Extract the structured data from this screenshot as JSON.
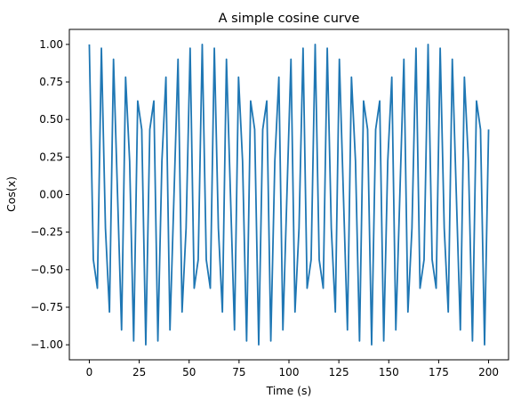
{
  "chart_data": {
    "type": "line",
    "title": "A simple cosine curve",
    "xlabel": "Time (s)",
    "ylabel": "Cos(x)",
    "xlim": [
      -10,
      210
    ],
    "ylim": [
      -1.1,
      1.1
    ],
    "xticks": [
      0,
      25,
      50,
      75,
      100,
      125,
      150,
      175,
      200
    ],
    "yticks": [
      1.0,
      0.75,
      0.5,
      0.25,
      0.0,
      -0.25,
      -0.5,
      -0.75,
      -1.0
    ],
    "ytick_labels": [
      "1.00",
      "0.75",
      "0.50",
      "0.25",
      "0.00",
      "−0.25",
      "−0.50",
      "−0.75",
      "−1.00"
    ],
    "grid": false,
    "series": [
      {
        "color": "#1f77b4",
        "x": [
          0,
          2.0202,
          4.0404,
          6.0606,
          8.0808,
          10.101,
          12.1212,
          14.1414,
          16.1616,
          18.1818,
          20.202,
          22.2222,
          24.2424,
          26.2626,
          28.2828,
          30.303,
          32.3232,
          34.3434,
          36.3636,
          38.3838,
          40.404,
          42.4242,
          44.4444,
          46.4646,
          48.4848,
          50.5051,
          52.5253,
          54.5455,
          56.5657,
          58.5859,
          60.6061,
          62.6263,
          64.6465,
          66.6667,
          68.6869,
          70.7071,
          72.7273,
          74.7475,
          76.7677,
          78.7879,
          80.8081,
          82.8283,
          84.8485,
          86.8687,
          88.8889,
          90.9091,
          92.9293,
          94.9495,
          96.9697,
          98.9899,
          101.0101,
          103.0303,
          105.0505,
          107.0707,
          109.0909,
          111.1111,
          113.1313,
          115.1515,
          117.1717,
          119.1919,
          121.2121,
          123.2323,
          125.2525,
          127.2727,
          129.2929,
          131.3131,
          133.3333,
          135.3535,
          137.3737,
          139.3939,
          141.4141,
          143.4343,
          145.4545,
          147.4747,
          149.4949,
          151.5152,
          153.5354,
          155.5556,
          157.5758,
          159.596,
          161.6162,
          163.6364,
          165.6566,
          167.6768,
          169.697,
          171.7172,
          173.7374,
          175.7576,
          177.7778,
          179.798,
          181.8182,
          183.8384,
          185.8586,
          187.8788,
          189.899,
          191.9192,
          193.9394,
          195.9596,
          197.9798,
          200
        ],
        "y": [
          1.0,
          -0.4339,
          -0.6234,
          0.9749,
          -0.2225,
          -0.7818,
          0.901,
          0.0,
          -0.901,
          0.7818,
          0.2225,
          -0.9749,
          0.6234,
          0.4339,
          -1.0,
          0.4339,
          0.6234,
          -0.9749,
          0.2225,
          0.7818,
          -0.901,
          0.0,
          0.901,
          -0.7818,
          -0.2225,
          0.9749,
          -0.6234,
          -0.4339,
          1.0,
          -0.4339,
          -0.6234,
          0.9749,
          -0.2225,
          -0.7818,
          0.901,
          0.0,
          -0.901,
          0.7818,
          0.2225,
          -0.9749,
          0.6234,
          0.4339,
          -1.0,
          0.4339,
          0.6234,
          -0.9749,
          0.2225,
          0.7818,
          -0.901,
          0.0,
          0.901,
          -0.7818,
          -0.2225,
          0.9749,
          -0.6234,
          -0.4339,
          1.0,
          -0.4339,
          -0.6234,
          0.9749,
          -0.2225,
          -0.7818,
          0.901,
          0.0,
          -0.901,
          0.7818,
          0.2225,
          -0.9749,
          0.6234,
          0.4339,
          -1.0,
          0.4339,
          0.6234,
          -0.9749,
          0.2225,
          0.7818,
          -0.901,
          0.0,
          0.901,
          -0.7818,
          -0.2225,
          0.9749,
          -0.6234,
          -0.4339,
          1.0,
          -0.4339,
          -0.6234,
          0.9749,
          -0.2225,
          -0.7818,
          0.901,
          0.0,
          -0.901,
          0.7818,
          0.2225,
          -0.9749,
          0.6234,
          0.4339,
          -1.0,
          0.4339
        ]
      }
    ]
  }
}
